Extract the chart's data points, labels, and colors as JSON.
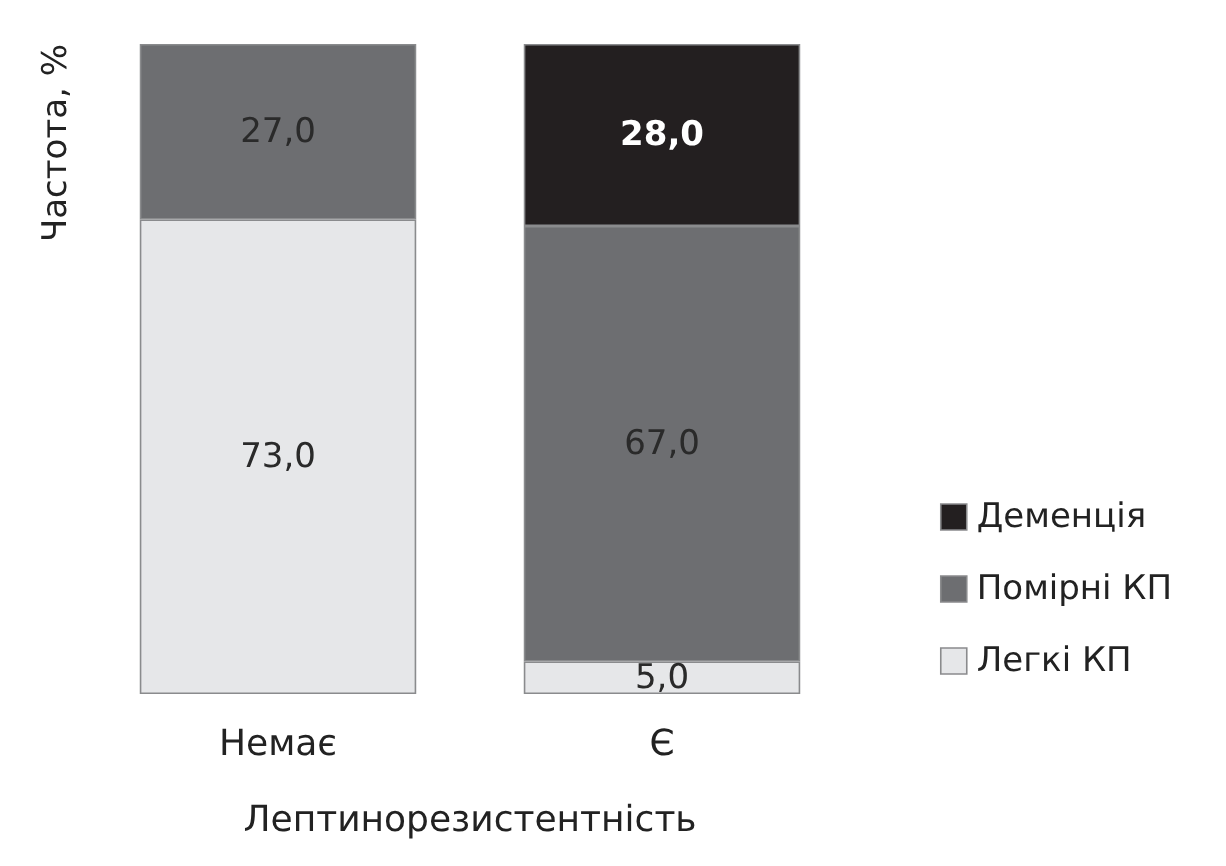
{
  "chart_data": {
    "type": "bar",
    "stacked": true,
    "xlabel": "Лептинорезистентність",
    "ylabel": "Частота, %",
    "categories": [
      "Немає",
      "Є"
    ],
    "tick_labels": "x",
    "legend": "right",
    "grid": false,
    "series": [
      {
        "name": "Легкі КП",
        "color": "#e6e7e9",
        "values": [
          73.0,
          5.0
        ],
        "value_labels": [
          "73,0",
          "5,0"
        ]
      },
      {
        "name": "Помірні КП",
        "color": "#6d6e71",
        "values": [
          27.0,
          67.0
        ],
        "value_labels": [
          "27,0",
          "67,0"
        ]
      },
      {
        "name": "Деменція",
        "color": "#231f20",
        "values": [
          null,
          28.0
        ],
        "value_labels": [
          null,
          "28,0"
        ]
      }
    ]
  }
}
